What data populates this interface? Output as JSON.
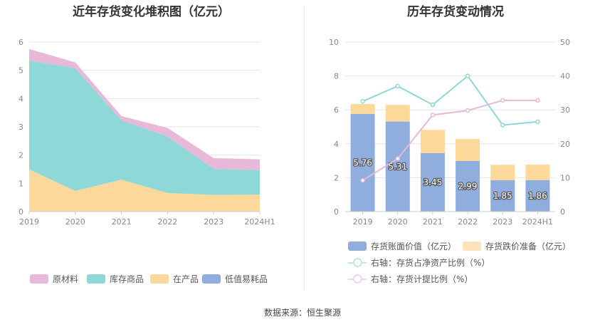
{
  "source": "数据来源：恒生聚源",
  "chart_data": [
    {
      "type": "area",
      "stacked": true,
      "title": "近年存货变化堆积图（亿元）",
      "categories": [
        "2019",
        "2020",
        "2021",
        "2022",
        "2023",
        "2024H1"
      ],
      "ylim": [
        0,
        6
      ],
      "yticks": [
        "0",
        "1",
        "2",
        "3",
        "4",
        "5",
        "6"
      ],
      "series": [
        {
          "name": "原材料",
          "color": "#E8B8D8",
          "values": [
            0.41,
            0.2,
            0.15,
            0.3,
            0.38,
            0.38
          ]
        },
        {
          "name": "库存商品",
          "color": "#8FD8D8",
          "values": [
            3.85,
            4.35,
            2.1,
            2.0,
            0.92,
            0.87
          ]
        },
        {
          "name": "在产品",
          "color": "#FDD89B",
          "values": [
            1.48,
            0.72,
            1.12,
            0.65,
            0.58,
            0.59
          ]
        },
        {
          "name": "低值易耗品",
          "color": "#8FAEDD",
          "values": [
            0.01,
            0.01,
            0.01,
            0.01,
            0.01,
            0.01
          ]
        }
      ],
      "legend": [
        "原材料",
        "库存商品",
        "在产品",
        "低值易耗品"
      ]
    },
    {
      "type": "bar+line",
      "title": "历年存货变动情况",
      "categories": [
        "2019",
        "2020",
        "2021",
        "2022",
        "2023",
        "2024H1"
      ],
      "ylim_left": [
        0,
        10
      ],
      "ylim_right": [
        0,
        50
      ],
      "yticks_left": [
        "0",
        "2",
        "4",
        "6",
        "8",
        "10"
      ],
      "yticks_right": [
        "0",
        "10",
        "20",
        "30",
        "40",
        "50"
      ],
      "bars": [
        {
          "name": "存货账面价值（亿元）",
          "color": "#8FAEDD",
          "values": [
            5.76,
            5.31,
            3.45,
            2.99,
            1.85,
            1.86
          ],
          "labels": [
            "5.76",
            "5.31",
            "3.45",
            "2.99",
            "1.85",
            "1.86"
          ]
        },
        {
          "name": "存货跌价准备（亿元）",
          "color": "#FDD89B",
          "values": [
            0.58,
            0.98,
            1.37,
            1.29,
            0.91,
            0.91
          ]
        }
      ],
      "lines": [
        {
          "name": "右轴：存货占净资产比例（%）",
          "color": "#8FD8D8",
          "values": [
            32.5,
            37.0,
            31.5,
            40.0,
            25.5,
            26.5
          ]
        },
        {
          "name": "右轴：存货计提比例（%）",
          "color": "#E8B8D8",
          "values": [
            9.2,
            15.6,
            28.5,
            29.8,
            32.8,
            32.8
          ]
        }
      ]
    }
  ]
}
